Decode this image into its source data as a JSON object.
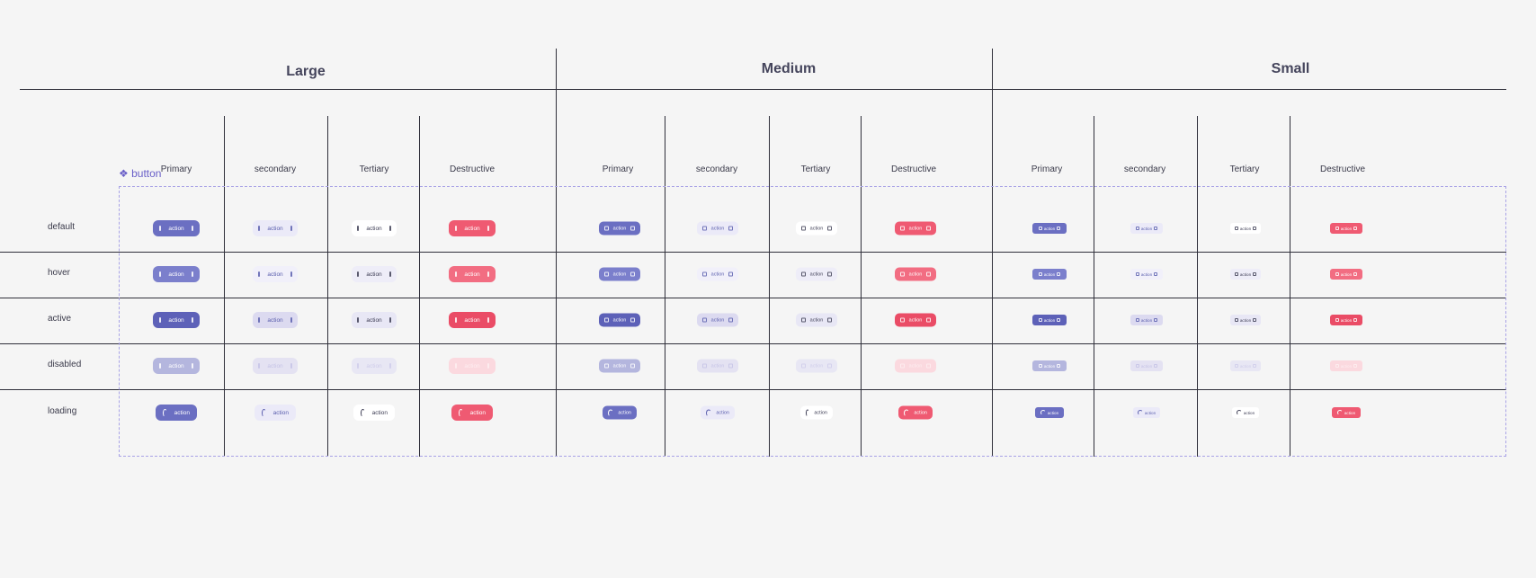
{
  "component_name": "❖ button",
  "sizes": [
    {
      "key": "L",
      "title": "Large"
    },
    {
      "key": "M",
      "title": "Medium"
    },
    {
      "key": "S",
      "title": "Small"
    }
  ],
  "columns": [
    "Primary",
    "secondary",
    "Tertiary",
    "Destructive"
  ],
  "states": [
    "default",
    "hover",
    "active",
    "disabled",
    "loading"
  ],
  "button_label": "action",
  "icons": {
    "leading": "frame-icon",
    "trailing": "frame-icon",
    "loading": "spinner-icon"
  },
  "colors": {
    "page_bg": "#f5f5f5",
    "frame_dashed": "#a8a2e6",
    "component_label": "#6a60c8",
    "primary": {
      "default": "#6b6fc2",
      "hover": "#7b7fcc",
      "active": "#5d61b8",
      "disabled": "#b4b6de",
      "loading": "#6b6fc2",
      "text": "#ffffff"
    },
    "secondary": {
      "default": "#ebeaf8",
      "hover": "#f1f0fa",
      "active": "#dcdaf0",
      "disabled": "#e4e2f2",
      "loading": "#ebeaf8",
      "text": "#5b5fae",
      "disabled_text": "#c5c3e6"
    },
    "tertiary": {
      "default": "#ffffff",
      "hover": "#eeedf8",
      "active": "#e8e7f5",
      "disabled": "#e8e7f4",
      "loading": "#ffffff",
      "text": "#3e3e55",
      "disabled_text": "#cfcdea"
    },
    "destructive": {
      "default": "#ef5a72",
      "hover": "#f26d82",
      "active": "#ea4c66",
      "disabled": "#fbd9df",
      "loading": "#ef5a72",
      "text": "#ffffff",
      "disabled_text": "#fdeef1"
    }
  }
}
